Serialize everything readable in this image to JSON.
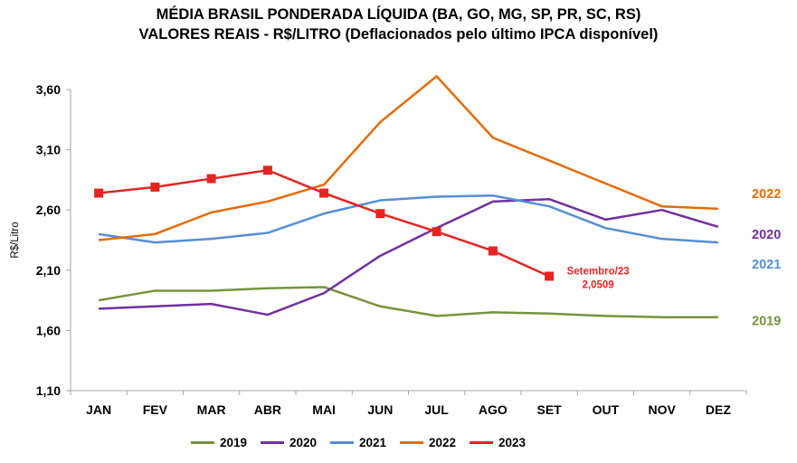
{
  "chart_data": {
    "type": "line",
    "title": "MÉDIA BRASIL PONDERADA LÍQUIDA (BA, GO, MG, SP, PR, SC, RS)",
    "subtitle": "VALORES REAIS - R$/LITRO (Deflacionados pelo último IPCA disponível)",
    "ylabel": "R$/Litro",
    "xlabel": "",
    "categories": [
      "JAN",
      "FEV",
      "MAR",
      "ABR",
      "MAI",
      "JUN",
      "JUL",
      "AGO",
      "SET",
      "OUT",
      "NOV",
      "DEZ"
    ],
    "ylim": [
      1.1,
      3.6
    ],
    "yticks": [
      "1,10",
      "1,60",
      "2,10",
      "2,60",
      "3,10",
      "3,60"
    ],
    "yticks_values": [
      1.1,
      1.6,
      2.1,
      2.6,
      3.1,
      3.6
    ],
    "grid": false,
    "legend_position": "bottom",
    "series": [
      {
        "name": "2019",
        "color": "#77933c",
        "end_label": "2019",
        "values": [
          1.85,
          1.93,
          1.93,
          1.95,
          1.96,
          1.8,
          1.72,
          1.75,
          1.74,
          1.72,
          1.71,
          1.71
        ]
      },
      {
        "name": "2020",
        "color": "#7030a0",
        "end_label": "2020",
        "values": [
          1.78,
          1.8,
          1.82,
          1.73,
          1.91,
          2.22,
          2.45,
          2.67,
          2.69,
          2.52,
          2.6,
          2.46
        ]
      },
      {
        "name": "2021",
        "color": "#558ed5",
        "end_label": "2021",
        "values": [
          2.4,
          2.33,
          2.36,
          2.41,
          2.57,
          2.68,
          2.71,
          2.72,
          2.63,
          2.45,
          2.36,
          2.33
        ]
      },
      {
        "name": "2022",
        "color": "#e46c0a",
        "end_label": "2022",
        "values": [
          2.35,
          2.4,
          2.58,
          2.67,
          2.81,
          3.33,
          3.71,
          3.2,
          3.01,
          2.82,
          2.63,
          2.61
        ]
      },
      {
        "name": "2023",
        "color": "#e52421",
        "markers": true,
        "values": [
          2.74,
          2.79,
          2.86,
          2.93,
          2.74,
          2.57,
          2.42,
          2.26,
          2.05,
          null,
          null,
          null
        ]
      }
    ],
    "annotation": {
      "line1": "Setembro/23",
      "line2": "2,0509"
    }
  }
}
